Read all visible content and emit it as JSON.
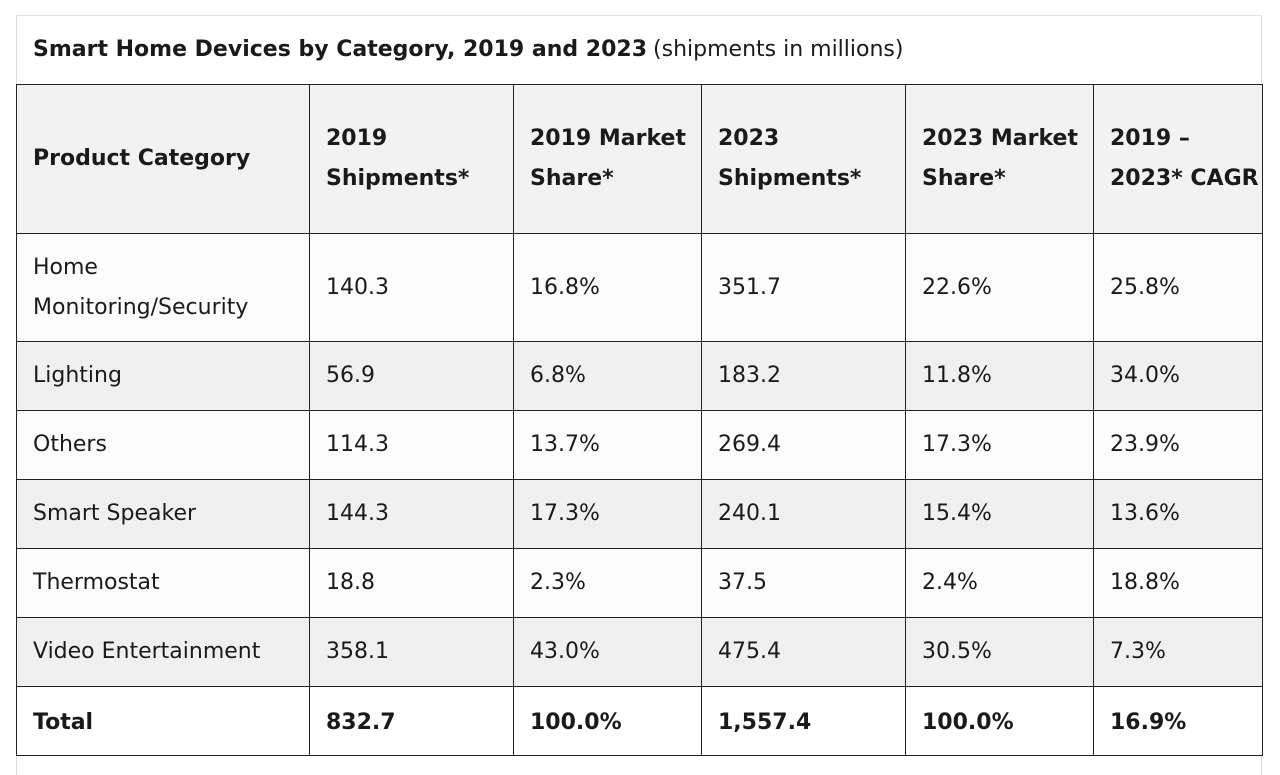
{
  "caption": {
    "title": "Smart Home Devices by Category, 2019 and 2023",
    "subtitle": "(shipments in millions)"
  },
  "table": {
    "headers": [
      "Product Category",
      "2019 Shipments*",
      "2019 Market Share*",
      "2023 Shipments*",
      "2023 Market Share*",
      "2019 – 2023* CAGR"
    ],
    "rows": [
      [
        "Home Monitoring/Security",
        "140.3",
        "16.8%",
        "351.7",
        "22.6%",
        "25.8%"
      ],
      [
        "Lighting",
        "56.9",
        "6.8%",
        "183.2",
        "11.8%",
        "34.0%"
      ],
      [
        "Others",
        "114.3",
        "13.7%",
        "269.4",
        "17.3%",
        "23.9%"
      ],
      [
        "Smart Speaker",
        "144.3",
        "17.3%",
        "240.1",
        "15.4%",
        "13.6%"
      ],
      [
        "Thermostat",
        "18.8",
        "2.3%",
        "37.5",
        "2.4%",
        "18.8%"
      ],
      [
        "Video Entertainment",
        "358.1",
        "43.0%",
        "475.4",
        "30.5%",
        "7.3%"
      ]
    ],
    "total": [
      "Total",
      "832.7",
      "100.0%",
      "1,557.4",
      "100.0%",
      "16.9%"
    ]
  }
}
